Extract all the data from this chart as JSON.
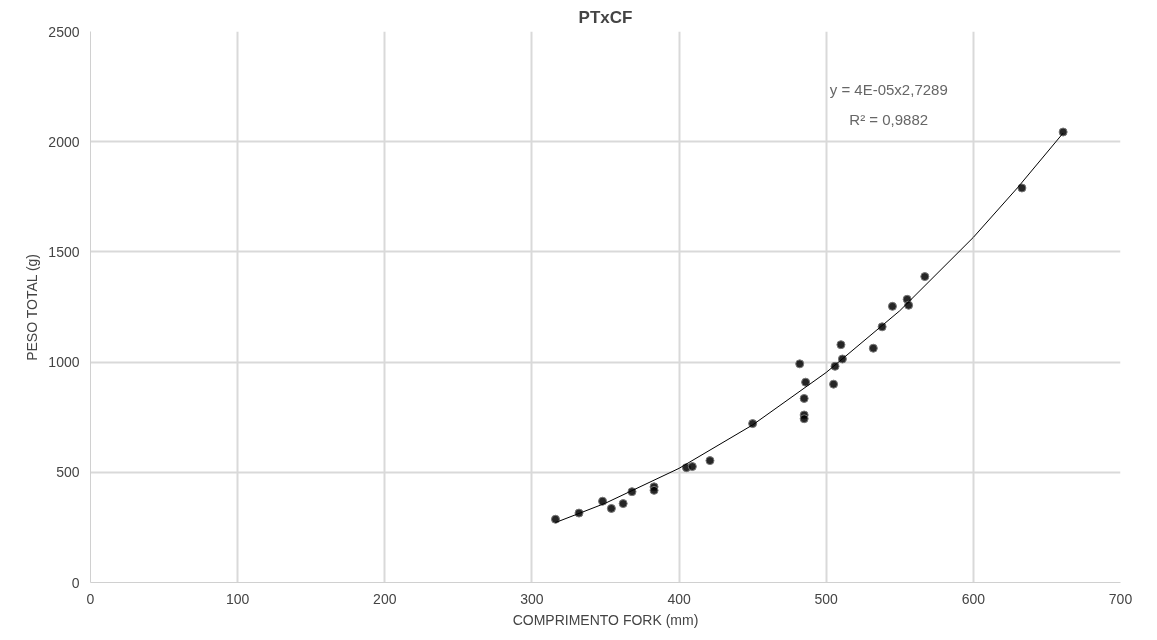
{
  "chart_data": {
    "type": "scatter",
    "title": "PTxCF",
    "xlabel": "COMPRIMENTO FORK (mm)",
    "ylabel": "PESO TOTAL (g)",
    "xlim": [
      0,
      700
    ],
    "xticks": [
      0,
      100,
      200,
      300,
      400,
      500,
      600,
      700
    ],
    "ylim": [
      0,
      2500
    ],
    "yticks": [
      0,
      500,
      1000,
      1500,
      2000,
      2500
    ],
    "grid": true,
    "series": [
      {
        "marker": "circle",
        "color": "#000000",
        "x": [
          316,
          332,
          348,
          354,
          362,
          368,
          383,
          383,
          405,
          409,
          421,
          450,
          482,
          486,
          485,
          485,
          485,
          505,
          506,
          511,
          510,
          532,
          538,
          545,
          555,
          556,
          567,
          633,
          661
        ],
        "values": [
          287,
          315,
          369,
          336,
          358,
          412,
          434,
          418,
          521,
          526,
          553,
          721,
          992,
          909,
          835,
          760,
          743,
          900,
          981,
          1014,
          1079,
          1063,
          1160,
          1253,
          1285,
          1258,
          1388,
          1790,
          2044
        ]
      },
      {
        "type": "line",
        "marker": "none",
        "color": "#000000",
        "x": [
          316,
          350,
          400,
          450,
          500,
          550,
          600,
          630,
          661
        ],
        "values": [
          272,
          360,
          518,
          715,
          953,
          1233,
          1566,
          1791,
          2039
        ]
      }
    ],
    "annotations": [
      "y = 4E-05x2,7289",
      "R² = 0,9882"
    ]
  }
}
